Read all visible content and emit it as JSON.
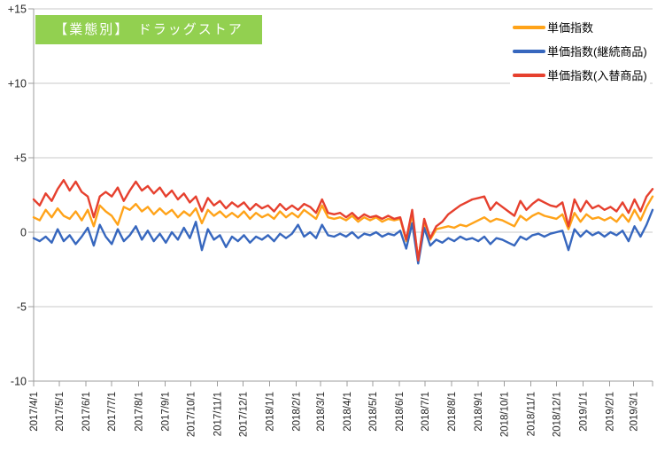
{
  "title": {
    "text": "【業態別】　ドラッグストア",
    "bg_color": "#92D050",
    "text_color": "#FFFFFF"
  },
  "axes": {
    "y_tick_labels": [
      "+15",
      "+10",
      "+5",
      "0",
      "-5",
      "-10"
    ],
    "y_tick_values": [
      15,
      10,
      5,
      0,
      -5,
      -10
    ],
    "grid_color": "#C9C9C9",
    "axis_color": "#9C9C9C",
    "label_color": "#262626"
  },
  "chart_data": {
    "type": "line",
    "title": "【業態別】　ドラッグストア",
    "xlabel": "",
    "ylabel": "",
    "ylim": [
      -10,
      15
    ],
    "grid": "horizontal",
    "legend_position": "top-right",
    "x_unit": "weekly points starting 2017/4/1",
    "total_days": 721,
    "x_tick_labels": [
      "2017/4/1",
      "2017/5/1",
      "2017/6/1",
      "2017/7/1",
      "2017/8/1",
      "2017/9/1",
      "2017/10/1",
      "2017/11/1",
      "2017/12/1",
      "2018/1/1",
      "2018/2/1",
      "2018/3/1",
      "2018/4/1",
      "2018/5/1",
      "2018/6/1",
      "2018/7/1",
      "2018/8/1",
      "2018/9/1",
      "2018/10/1",
      "2018/11/1",
      "2018/12/1",
      "2019/1/1",
      "2019/2/1",
      "2019/3/1"
    ],
    "x_tick_days": [
      0,
      30,
      61,
      91,
      122,
      153,
      183,
      214,
      244,
      275,
      306,
      334,
      365,
      395,
      426,
      456,
      487,
      518,
      548,
      579,
      609,
      640,
      671,
      699
    ],
    "series": [
      {
        "name": "単価指数",
        "color": "#FFA319",
        "values": [
          1.0,
          0.8,
          1.5,
          1.0,
          1.6,
          1.1,
          0.9,
          1.4,
          0.8,
          1.5,
          0.4,
          1.8,
          1.4,
          1.1,
          0.5,
          1.7,
          1.5,
          1.9,
          1.4,
          1.7,
          1.2,
          1.6,
          1.2,
          1.5,
          1.0,
          1.4,
          1.1,
          1.6,
          0.6,
          1.5,
          1.1,
          1.4,
          1.0,
          1.3,
          1.0,
          1.4,
          0.9,
          1.3,
          1.0,
          1.2,
          0.9,
          1.4,
          1.0,
          1.3,
          1.0,
          1.5,
          1.2,
          0.9,
          1.8,
          1.0,
          0.9,
          1.0,
          0.8,
          1.1,
          0.7,
          1.0,
          0.8,
          1.0,
          0.7,
          0.9,
          0.8,
          0.9,
          -0.6,
          1.2,
          -1.8,
          0.7,
          -0.5,
          0.2,
          0.3,
          0.4,
          0.3,
          0.5,
          0.4,
          0.6,
          0.8,
          1.0,
          0.7,
          0.9,
          0.8,
          0.6,
          0.4,
          1.1,
          0.8,
          1.1,
          1.3,
          1.1,
          1.0,
          0.9,
          1.2,
          0.2,
          1.3,
          0.7,
          1.2,
          0.9,
          1.0,
          0.8,
          1.0,
          0.7,
          1.2,
          0.7,
          1.5,
          0.8,
          1.7,
          2.4
        ]
      },
      {
        "name": "単価指数(継続商品)",
        "color": "#3767BE",
        "values": [
          -0.4,
          -0.6,
          -0.3,
          -0.7,
          0.2,
          -0.6,
          -0.2,
          -0.8,
          -0.3,
          0.3,
          -0.9,
          0.5,
          -0.3,
          -0.8,
          0.2,
          -0.6,
          -0.2,
          0.4,
          -0.5,
          0.1,
          -0.6,
          -0.1,
          -0.7,
          0.0,
          -0.5,
          0.3,
          -0.4,
          0.7,
          -1.2,
          0.2,
          -0.5,
          -0.2,
          -1.0,
          -0.3,
          -0.6,
          -0.2,
          -0.7,
          -0.3,
          -0.5,
          -0.2,
          -0.6,
          -0.1,
          -0.4,
          -0.1,
          0.5,
          -0.3,
          0.0,
          -0.4,
          0.5,
          -0.2,
          -0.3,
          -0.1,
          -0.3,
          0.0,
          -0.4,
          -0.1,
          -0.2,
          0.0,
          -0.3,
          -0.1,
          -0.2,
          0.1,
          -1.1,
          0.6,
          -2.1,
          0.3,
          -0.9,
          -0.5,
          -0.7,
          -0.4,
          -0.6,
          -0.3,
          -0.5,
          -0.4,
          -0.6,
          -0.3,
          -0.8,
          -0.4,
          -0.5,
          -0.7,
          -0.9,
          -0.3,
          -0.5,
          -0.2,
          -0.1,
          -0.3,
          -0.1,
          0.0,
          0.1,
          -1.2,
          0.2,
          -0.3,
          0.1,
          -0.2,
          0.0,
          -0.3,
          0.0,
          -0.2,
          0.1,
          -0.6,
          0.4,
          -0.3,
          0.5,
          1.5
        ]
      },
      {
        "name": "単価指数(入替商品)",
        "color": "#E6402E",
        "values": [
          2.2,
          1.8,
          2.6,
          2.1,
          2.9,
          3.5,
          2.8,
          3.4,
          2.7,
          2.4,
          1.0,
          2.4,
          2.7,
          2.4,
          3.0,
          2.1,
          2.8,
          3.4,
          2.8,
          3.1,
          2.6,
          3.0,
          2.4,
          2.8,
          2.2,
          2.6,
          2.0,
          2.4,
          1.4,
          2.3,
          1.8,
          2.1,
          1.6,
          2.0,
          1.7,
          2.0,
          1.5,
          1.9,
          1.6,
          1.8,
          1.4,
          1.9,
          1.5,
          1.8,
          1.5,
          1.9,
          1.7,
          1.3,
          2.2,
          1.3,
          1.2,
          1.3,
          1.0,
          1.3,
          0.9,
          1.2,
          1.0,
          1.1,
          0.9,
          1.1,
          0.9,
          1.0,
          -0.5,
          1.5,
          -1.9,
          0.9,
          -0.4,
          0.4,
          0.7,
          1.2,
          1.5,
          1.8,
          2.0,
          2.2,
          2.3,
          2.4,
          1.5,
          2.0,
          1.7,
          1.4,
          1.1,
          2.1,
          1.5,
          1.9,
          2.2,
          2.0,
          1.8,
          1.7,
          2.0,
          0.4,
          2.2,
          1.4,
          2.1,
          1.6,
          1.8,
          1.5,
          1.7,
          1.4,
          2.0,
          1.3,
          2.2,
          1.4,
          2.4,
          2.9
        ]
      }
    ]
  }
}
